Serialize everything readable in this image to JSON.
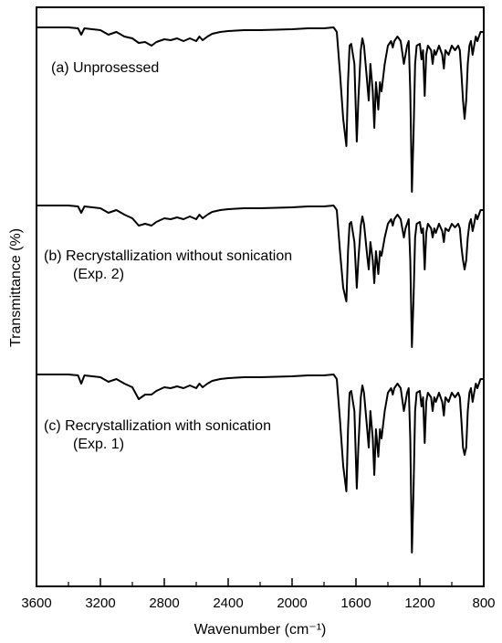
{
  "chart_data": {
    "type": "line",
    "xlabel": "Wavenumber (cm⁻¹)",
    "ylabel": "Transmittance (%)",
    "xlim": [
      3600,
      800
    ],
    "x_reversed": true,
    "y_values_shown": false,
    "grid": false,
    "legend": "none",
    "x_ticks": [
      3600,
      3200,
      2800,
      2400,
      2000,
      1600,
      1200,
      800
    ],
    "x_minor_ticks": [
      3400,
      3000,
      2600,
      2200,
      1800,
      1400,
      1000
    ],
    "line_color": "#000000",
    "series": [
      {
        "label_lines": [
          "(a) Unprosessed"
        ],
        "baseline_y": 30,
        "points": [
          [
            3600,
            0
          ],
          [
            3400,
            0
          ],
          [
            3340,
            1
          ],
          [
            3320,
            8
          ],
          [
            3300,
            1
          ],
          [
            3200,
            3
          ],
          [
            3150,
            8
          ],
          [
            3100,
            5
          ],
          [
            3050,
            10
          ],
          [
            3000,
            12
          ],
          [
            2960,
            17
          ],
          [
            2920,
            16
          ],
          [
            2880,
            20
          ],
          [
            2850,
            16
          ],
          [
            2800,
            13
          ],
          [
            2760,
            14
          ],
          [
            2720,
            12
          ],
          [
            2680,
            15
          ],
          [
            2640,
            12
          ],
          [
            2600,
            15
          ],
          [
            2580,
            10
          ],
          [
            2560,
            14
          ],
          [
            2530,
            10
          ],
          [
            2500,
            7
          ],
          [
            2450,
            5
          ],
          [
            2400,
            4
          ],
          [
            2300,
            3
          ],
          [
            2200,
            3
          ],
          [
            2000,
            2
          ],
          [
            1900,
            1
          ],
          [
            1800,
            1
          ],
          [
            1740,
            0
          ],
          [
            1720,
            5
          ],
          [
            1700,
            50
          ],
          [
            1680,
            100
          ],
          [
            1660,
            130
          ],
          [
            1650,
            60
          ],
          [
            1640,
            20
          ],
          [
            1630,
            18
          ],
          [
            1610,
            40
          ],
          [
            1595,
            125
          ],
          [
            1585,
            80
          ],
          [
            1570,
            25
          ],
          [
            1560,
            12
          ],
          [
            1550,
            20
          ],
          [
            1530,
            60
          ],
          [
            1520,
            80
          ],
          [
            1510,
            40
          ],
          [
            1495,
            70
          ],
          [
            1485,
            110
          ],
          [
            1475,
            60
          ],
          [
            1460,
            90
          ],
          [
            1450,
            60
          ],
          [
            1440,
            70
          ],
          [
            1420,
            40
          ],
          [
            1400,
            20
          ],
          [
            1380,
            15
          ],
          [
            1370,
            22
          ],
          [
            1360,
            15
          ],
          [
            1340,
            10
          ],
          [
            1320,
            15
          ],
          [
            1300,
            40
          ],
          [
            1290,
            30
          ],
          [
            1280,
            20
          ],
          [
            1270,
            15
          ],
          [
            1260,
            70
          ],
          [
            1250,
            180
          ],
          [
            1240,
            120
          ],
          [
            1230,
            40
          ],
          [
            1220,
            20
          ],
          [
            1200,
            18
          ],
          [
            1190,
            35
          ],
          [
            1180,
            25
          ],
          [
            1170,
            75
          ],
          [
            1160,
            30
          ],
          [
            1150,
            20
          ],
          [
            1130,
            25
          ],
          [
            1120,
            40
          ],
          [
            1110,
            25
          ],
          [
            1100,
            30
          ],
          [
            1080,
            20
          ],
          [
            1060,
            30
          ],
          [
            1050,
            45
          ],
          [
            1040,
            25
          ],
          [
            1020,
            30
          ],
          [
            1000,
            20
          ],
          [
            980,
            25
          ],
          [
            960,
            20
          ],
          [
            950,
            25
          ],
          [
            940,
            50
          ],
          [
            930,
            80
          ],
          [
            920,
            100
          ],
          [
            910,
            80
          ],
          [
            900,
            40
          ],
          [
            890,
            20
          ],
          [
            880,
            15
          ],
          [
            870,
            30
          ],
          [
            860,
            20
          ],
          [
            850,
            10
          ],
          [
            840,
            15
          ],
          [
            820,
            5
          ],
          [
            800,
            5
          ]
        ]
      },
      {
        "label_lines": [
          "(b) Recrystallization without sonication",
          "(Exp. 2)"
        ],
        "baseline_y": 225,
        "points": [
          [
            3600,
            0
          ],
          [
            3400,
            0
          ],
          [
            3340,
            1
          ],
          [
            3320,
            8
          ],
          [
            3300,
            1
          ],
          [
            3200,
            3
          ],
          [
            3150,
            8
          ],
          [
            3100,
            5
          ],
          [
            3050,
            10
          ],
          [
            3000,
            14
          ],
          [
            2960,
            22
          ],
          [
            2920,
            20
          ],
          [
            2880,
            22
          ],
          [
            2850,
            18
          ],
          [
            2800,
            14
          ],
          [
            2760,
            15
          ],
          [
            2720,
            13
          ],
          [
            2680,
            15
          ],
          [
            2640,
            12
          ],
          [
            2600,
            15
          ],
          [
            2580,
            10
          ],
          [
            2560,
            14
          ],
          [
            2530,
            10
          ],
          [
            2500,
            7
          ],
          [
            2450,
            5
          ],
          [
            2400,
            4
          ],
          [
            2300,
            3
          ],
          [
            2200,
            3
          ],
          [
            2000,
            2
          ],
          [
            1900,
            1
          ],
          [
            1800,
            1
          ],
          [
            1740,
            0
          ],
          [
            1720,
            5
          ],
          [
            1700,
            50
          ],
          [
            1680,
            90
          ],
          [
            1660,
            105
          ],
          [
            1650,
            50
          ],
          [
            1640,
            20
          ],
          [
            1630,
            18
          ],
          [
            1610,
            40
          ],
          [
            1595,
            90
          ],
          [
            1585,
            60
          ],
          [
            1570,
            22
          ],
          [
            1560,
            12
          ],
          [
            1550,
            20
          ],
          [
            1530,
            55
          ],
          [
            1520,
            70
          ],
          [
            1510,
            40
          ],
          [
            1495,
            60
          ],
          [
            1485,
            85
          ],
          [
            1475,
            50
          ],
          [
            1460,
            75
          ],
          [
            1450,
            50
          ],
          [
            1440,
            55
          ],
          [
            1420,
            35
          ],
          [
            1400,
            20
          ],
          [
            1380,
            15
          ],
          [
            1370,
            22
          ],
          [
            1360,
            15
          ],
          [
            1340,
            10
          ],
          [
            1320,
            15
          ],
          [
            1300,
            35
          ],
          [
            1290,
            25
          ],
          [
            1280,
            20
          ],
          [
            1270,
            15
          ],
          [
            1260,
            60
          ],
          [
            1250,
            155
          ],
          [
            1240,
            105
          ],
          [
            1230,
            35
          ],
          [
            1220,
            20
          ],
          [
            1200,
            18
          ],
          [
            1190,
            30
          ],
          [
            1180,
            25
          ],
          [
            1170,
            70
          ],
          [
            1160,
            30
          ],
          [
            1150,
            20
          ],
          [
            1130,
            25
          ],
          [
            1120,
            35
          ],
          [
            1110,
            25
          ],
          [
            1100,
            30
          ],
          [
            1080,
            20
          ],
          [
            1060,
            28
          ],
          [
            1050,
            40
          ],
          [
            1040,
            25
          ],
          [
            1020,
            28
          ],
          [
            1000,
            20
          ],
          [
            980,
            24
          ],
          [
            960,
            20
          ],
          [
            950,
            25
          ],
          [
            940,
            45
          ],
          [
            930,
            60
          ],
          [
            920,
            70
          ],
          [
            910,
            60
          ],
          [
            900,
            35
          ],
          [
            890,
            20
          ],
          [
            880,
            15
          ],
          [
            870,
            28
          ],
          [
            860,
            20
          ],
          [
            850,
            10
          ],
          [
            840,
            15
          ],
          [
            820,
            5
          ],
          [
            800,
            5
          ]
        ]
      },
      {
        "label_lines": [
          "(c) Recrystallization with sonication",
          "(Exp. 1)"
        ],
        "baseline_y": 410,
        "points": [
          [
            3600,
            0
          ],
          [
            3400,
            0
          ],
          [
            3340,
            1
          ],
          [
            3320,
            10
          ],
          [
            3300,
            1
          ],
          [
            3200,
            3
          ],
          [
            3150,
            8
          ],
          [
            3100,
            5
          ],
          [
            3050,
            10
          ],
          [
            3000,
            14
          ],
          [
            2960,
            27
          ],
          [
            2920,
            22
          ],
          [
            2880,
            22
          ],
          [
            2850,
            18
          ],
          [
            2800,
            14
          ],
          [
            2760,
            15
          ],
          [
            2720,
            13
          ],
          [
            2680,
            15
          ],
          [
            2640,
            12
          ],
          [
            2600,
            15
          ],
          [
            2580,
            10
          ],
          [
            2560,
            14
          ],
          [
            2530,
            10
          ],
          [
            2500,
            7
          ],
          [
            2450,
            5
          ],
          [
            2400,
            4
          ],
          [
            2300,
            3
          ],
          [
            2200,
            3
          ],
          [
            2000,
            2
          ],
          [
            1900,
            1
          ],
          [
            1800,
            1
          ],
          [
            1740,
            0
          ],
          [
            1720,
            5
          ],
          [
            1700,
            50
          ],
          [
            1680,
            100
          ],
          [
            1660,
            128
          ],
          [
            1650,
            60
          ],
          [
            1640,
            20
          ],
          [
            1630,
            18
          ],
          [
            1610,
            40
          ],
          [
            1595,
            125
          ],
          [
            1585,
            80
          ],
          [
            1570,
            25
          ],
          [
            1560,
            12
          ],
          [
            1550,
            20
          ],
          [
            1530,
            60
          ],
          [
            1520,
            80
          ],
          [
            1510,
            40
          ],
          [
            1495,
            70
          ],
          [
            1485,
            110
          ],
          [
            1475,
            60
          ],
          [
            1460,
            90
          ],
          [
            1450,
            60
          ],
          [
            1440,
            70
          ],
          [
            1420,
            40
          ],
          [
            1400,
            20
          ],
          [
            1380,
            15
          ],
          [
            1370,
            22
          ],
          [
            1360,
            15
          ],
          [
            1340,
            10
          ],
          [
            1320,
            15
          ],
          [
            1300,
            40
          ],
          [
            1290,
            30
          ],
          [
            1280,
            20
          ],
          [
            1270,
            15
          ],
          [
            1260,
            70
          ],
          [
            1250,
            195
          ],
          [
            1240,
            130
          ],
          [
            1230,
            40
          ],
          [
            1220,
            20
          ],
          [
            1200,
            18
          ],
          [
            1190,
            35
          ],
          [
            1180,
            25
          ],
          [
            1170,
            75
          ],
          [
            1160,
            30
          ],
          [
            1150,
            20
          ],
          [
            1130,
            25
          ],
          [
            1120,
            40
          ],
          [
            1110,
            25
          ],
          [
            1100,
            30
          ],
          [
            1080,
            20
          ],
          [
            1060,
            30
          ],
          [
            1050,
            45
          ],
          [
            1040,
            25
          ],
          [
            1020,
            30
          ],
          [
            1000,
            20
          ],
          [
            980,
            25
          ],
          [
            960,
            20
          ],
          [
            950,
            25
          ],
          [
            940,
            50
          ],
          [
            930,
            80
          ],
          [
            920,
            88
          ],
          [
            910,
            80
          ],
          [
            900,
            40
          ],
          [
            890,
            20
          ],
          [
            880,
            15
          ],
          [
            870,
            30
          ],
          [
            860,
            20
          ],
          [
            850,
            10
          ],
          [
            840,
            15
          ],
          [
            820,
            5
          ],
          [
            800,
            5
          ]
        ]
      }
    ]
  }
}
